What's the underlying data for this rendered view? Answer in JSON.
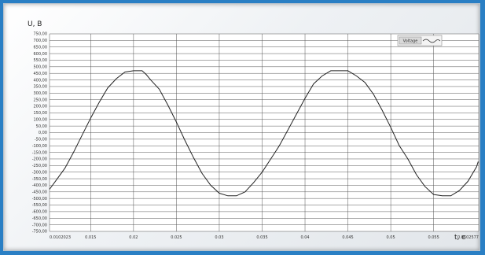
{
  "chart_data": {
    "type": "line",
    "title": "",
    "xlabel": "t, c",
    "ylabel": "U, B",
    "xlim": [
      0.0102023,
      0.0602577
    ],
    "ylim": [
      -750,
      750
    ],
    "y_ticks": [
      "750,00",
      "700,00",
      "650,00",
      "600,00",
      "550,00",
      "500,00",
      "450,00",
      "400,00",
      "350,00",
      "300,00",
      "250,00",
      "200,00",
      "150,00",
      "100,00",
      "50,00",
      "0,00",
      "-50,00",
      "-100,00",
      "-150,00",
      "-200,00",
      "-250,00",
      "-300,00",
      "-350,00",
      "-400,00",
      "-450,00",
      "-500,00",
      "-550,00",
      "-600,00",
      "-650,00",
      "-700,00",
      "-750,00"
    ],
    "x_ticks": [
      {
        "v": 0.0102023,
        "label": "0.0102023"
      },
      {
        "v": 0.015,
        "label": "0.015"
      },
      {
        "v": 0.02,
        "label": "0.02"
      },
      {
        "v": 0.025,
        "label": "0.025"
      },
      {
        "v": 0.03,
        "label": "0.03"
      },
      {
        "v": 0.035,
        "label": "0.035"
      },
      {
        "v": 0.04,
        "label": "0.04"
      },
      {
        "v": 0.045,
        "label": "0.045"
      },
      {
        "v": 0.05,
        "label": "0.05"
      },
      {
        "v": 0.055,
        "label": "0.055"
      },
      {
        "v": 0.0602577,
        "label": "0.0602577"
      }
    ],
    "grid": true,
    "legend": {
      "position": "top-right",
      "label": "Voltage"
    },
    "series": [
      {
        "x": [
          0.0102,
          0.011,
          0.012,
          0.013,
          0.014,
          0.015,
          0.016,
          0.017,
          0.018,
          0.019,
          0.02,
          0.021,
          0.0215,
          0.022,
          0.023,
          0.024,
          0.025,
          0.026,
          0.027,
          0.028,
          0.029,
          0.03,
          0.031,
          0.032,
          0.033,
          0.034,
          0.035,
          0.036,
          0.0365,
          0.037,
          0.038,
          0.039,
          0.04,
          0.041,
          0.042,
          0.043,
          0.044,
          0.045,
          0.046,
          0.047,
          0.048,
          0.049,
          0.05,
          0.051,
          0.0515,
          0.052,
          0.053,
          0.054,
          0.055,
          0.056,
          0.057,
          0.058,
          0.059,
          0.06,
          0.0602
        ],
        "values": [
          -430,
          -360,
          -270,
          -150,
          -20,
          110,
          230,
          340,
          410,
          460,
          470,
          470,
          440,
          400,
          330,
          210,
          80,
          -60,
          -190,
          -310,
          -400,
          -460,
          -480,
          -480,
          -450,
          -380,
          -300,
          -200,
          -150,
          -100,
          20,
          140,
          260,
          370,
          430,
          470,
          470,
          470,
          430,
          380,
          290,
          170,
          40,
          -100,
          -150,
          -200,
          -320,
          -410,
          -470,
          -480,
          -480,
          -440,
          -370,
          -260,
          -220
        ]
      }
    ]
  }
}
